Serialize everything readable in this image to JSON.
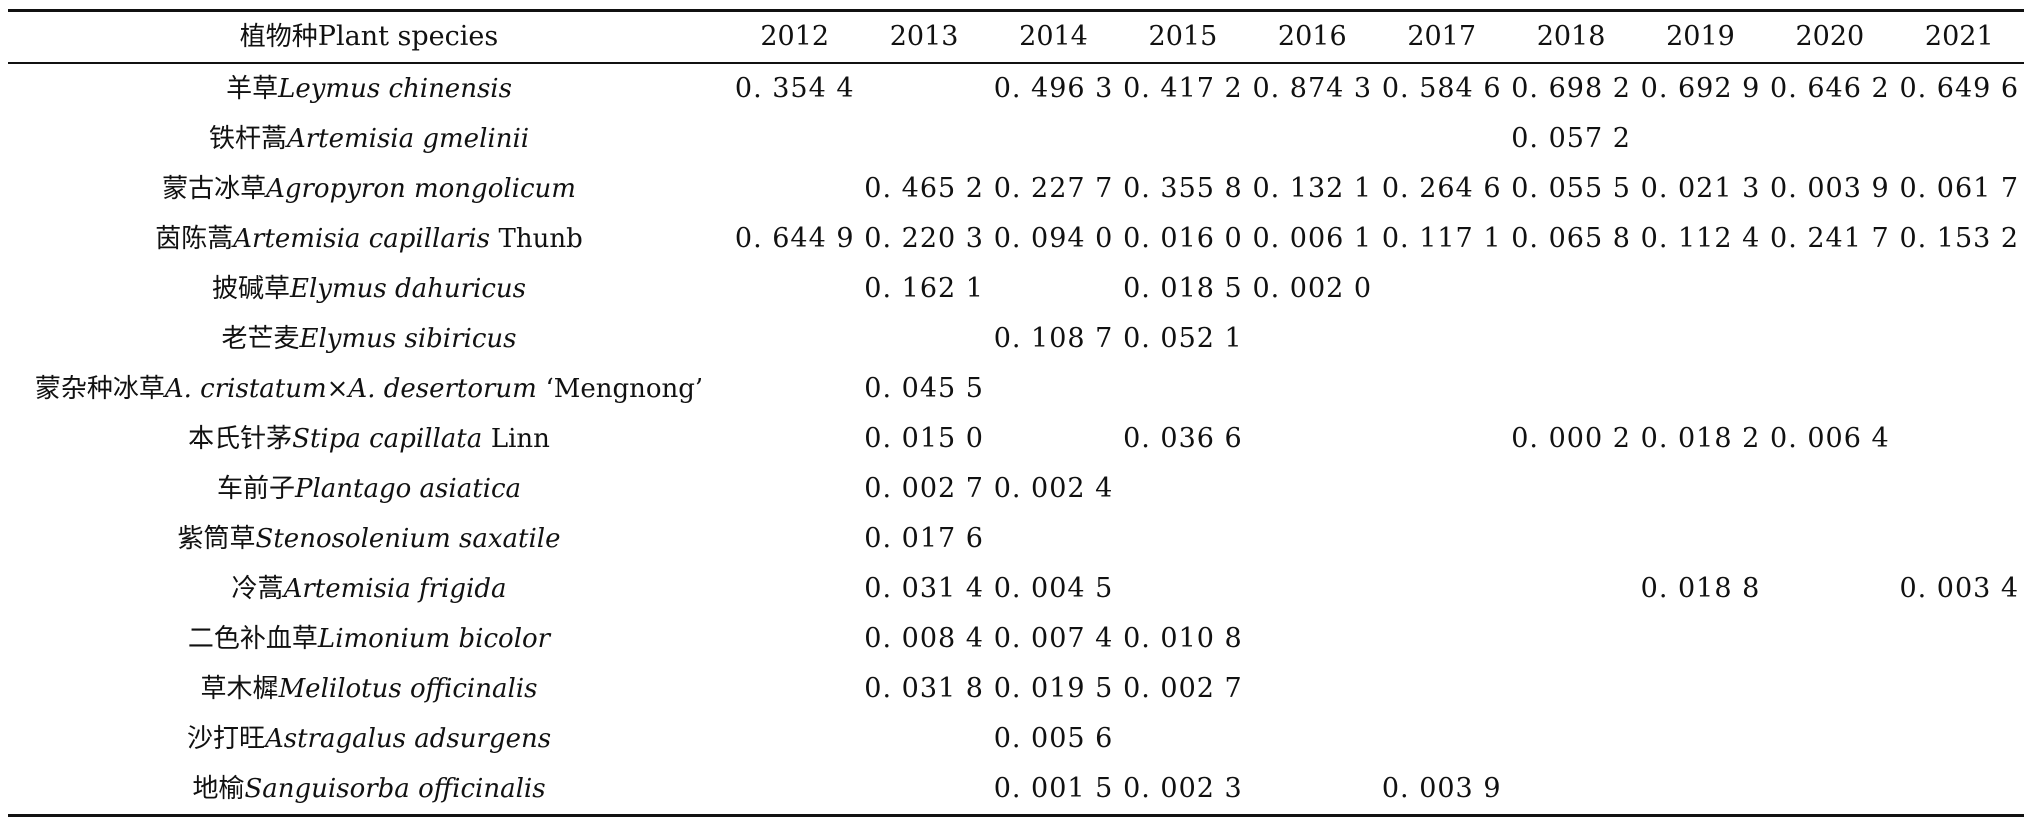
{
  "table": {
    "header": {
      "species_cn": "植物种",
      "species_en": "Plant species",
      "years": [
        "2012",
        "2013",
        "2014",
        "2015",
        "2016",
        "2017",
        "2018",
        "2019",
        "2020",
        "2021"
      ]
    },
    "rows": [
      {
        "cn": "羊草",
        "sci": "Leymus chinensis",
        "author": "",
        "values": [
          "0. 354 4",
          "",
          "0. 496 3",
          "0. 417 2",
          "0. 874 3",
          "0. 584 6",
          "0. 698 2",
          "0. 692 9",
          "0. 646 2",
          "0. 649 6"
        ]
      },
      {
        "cn": "铁杆蒿",
        "sci": "Artemisia gmelinii",
        "author": "",
        "values": [
          "",
          "",
          "",
          "",
          "",
          "",
          "0. 057 2",
          "",
          "",
          ""
        ]
      },
      {
        "cn": "蒙古冰草",
        "sci": "Agropyron mongolicum",
        "author": "",
        "values": [
          "",
          "0. 465 2",
          "0. 227 7",
          "0. 355 8",
          "0. 132 1",
          "0. 264 6",
          "0. 055 5",
          "0. 021 3",
          "0. 003 9",
          "0. 061 7"
        ]
      },
      {
        "cn": "茵陈蒿",
        "sci": "Artemisia capillaris",
        "author": "Thunb",
        "values": [
          "0. 644 9",
          "0. 220 3",
          "0. 094 0",
          "0. 016 0",
          "0. 006 1",
          "0. 117 1",
          "0. 065 8",
          "0. 112 4",
          "0. 241 7",
          "0. 153 2"
        ]
      },
      {
        "cn": "披碱草",
        "sci": "Elymus dahuricus",
        "author": "",
        "values": [
          "",
          "0. 162 1",
          "",
          "0. 018 5",
          "0. 002 0",
          "",
          "",
          "",
          "",
          ""
        ]
      },
      {
        "cn": "老芒麦",
        "sci": "Elymus sibiricus",
        "author": "",
        "values": [
          "",
          "",
          "0. 108 7",
          "0. 052 1",
          "",
          "",
          "",
          "",
          "",
          ""
        ]
      },
      {
        "cn": "蒙杂种冰草",
        "sci": "A. cristatum×A. desertorum",
        "author": "‘Mengnong’",
        "values": [
          "",
          "0. 045 5",
          "",
          "",
          "",
          "",
          "",
          "",
          "",
          ""
        ]
      },
      {
        "cn": "本氏针茅",
        "sci": "Stipa capillata",
        "author": "Linn",
        "values": [
          "",
          "0. 015 0",
          "",
          "0. 036 6",
          "",
          "",
          "0. 000 2",
          "0. 018 2",
          "0. 006 4",
          ""
        ]
      },
      {
        "cn": "车前子",
        "sci": "Plantago asiatica",
        "author": "",
        "values": [
          "",
          "0. 002 7",
          "0. 002 4",
          "",
          "",
          "",
          "",
          "",
          "",
          ""
        ]
      },
      {
        "cn": "紫筒草",
        "sci": "Stenosolenium saxatile",
        "author": "",
        "values": [
          "",
          "0. 017 6",
          "",
          "",
          "",
          "",
          "",
          "",
          "",
          ""
        ]
      },
      {
        "cn": "冷蒿",
        "sci": "Artemisia frigida",
        "author": "",
        "values": [
          "",
          "0. 031 4",
          "0. 004 5",
          "",
          "",
          "",
          "",
          "0. 018 8",
          "",
          "0. 003 4"
        ]
      },
      {
        "cn": "二色补血草",
        "sci": "Limonium bicolor",
        "author": "",
        "values": [
          "",
          "0. 008 4",
          "0. 007 4",
          "0. 010 8",
          "",
          "",
          "",
          "",
          "",
          ""
        ]
      },
      {
        "cn": "草木樨",
        "sci": "Melilotus officinalis",
        "author": "",
        "values": [
          "",
          "0. 031 8",
          "0. 019 5",
          "0. 002 7",
          "",
          "",
          "",
          "",
          "",
          ""
        ]
      },
      {
        "cn": "沙打旺",
        "sci": "Astragalus adsurgens",
        "author": "",
        "values": [
          "",
          "",
          "0. 005 6",
          "",
          "",
          "",
          "",
          "",
          "",
          ""
        ]
      },
      {
        "cn": "地榆",
        "sci": "Sanguisorba officinalis",
        "author": "",
        "values": [
          "",
          "",
          "0. 001 5",
          "0. 002 3",
          "",
          "0. 003 9",
          "",
          "",
          "",
          ""
        ]
      }
    ]
  }
}
